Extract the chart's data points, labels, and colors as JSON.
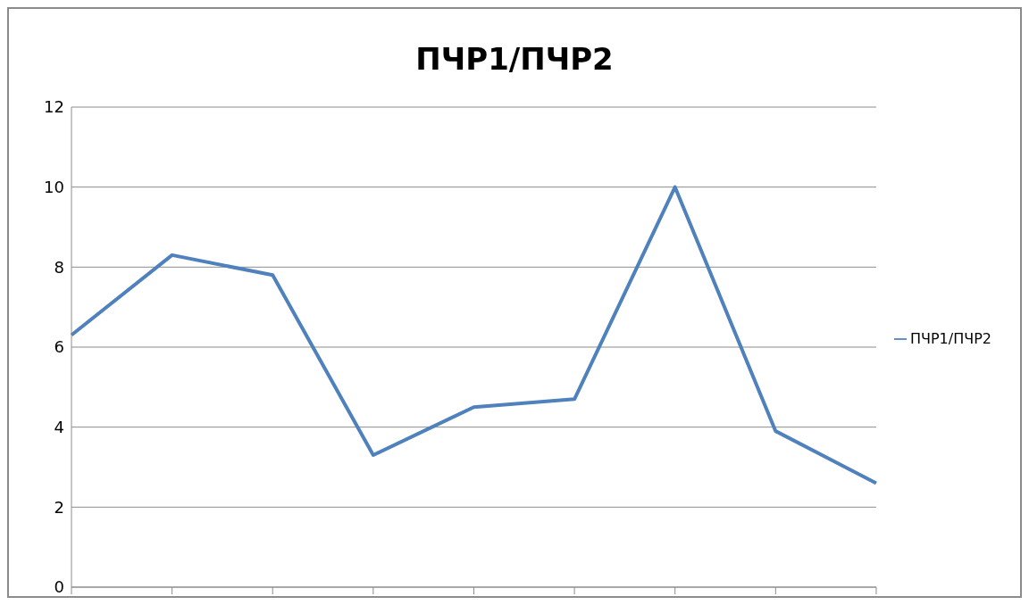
{
  "chart_data": {
    "type": "line",
    "title": "ПЧР1/ПЧР2",
    "categories": [
      null,
      null,
      null,
      null,
      null,
      null,
      null,
      null,
      null
    ],
    "series": [
      {
        "name": "ПЧР1/ПЧР2",
        "color": "#4f81bd",
        "values": [
          6.3,
          8.3,
          7.8,
          3.3,
          4.5,
          4.7,
          10.0,
          3.9,
          2.6
        ]
      }
    ],
    "ylim": [
      0,
      12
    ],
    "yticks": [
      0,
      2,
      4,
      6,
      8,
      10,
      12
    ],
    "grid": "y",
    "legend": "right",
    "marker": "none",
    "line_style": "solid"
  }
}
